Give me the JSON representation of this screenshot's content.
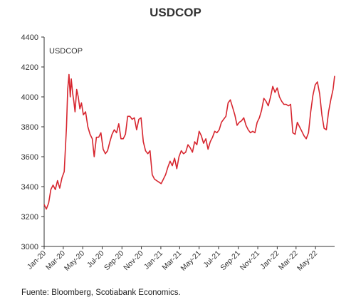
{
  "title": "USDCOP",
  "source": "Fuente: Bloomberg, Scotiabank Economics.",
  "chart_data": {
    "type": "line",
    "title": "USDCOP",
    "xlabel": "",
    "ylabel": "",
    "ylim": [
      3000,
      4400
    ],
    "xlim": [
      "2020-01-01",
      "2022-06-30"
    ],
    "grid": false,
    "legend": "top-left",
    "y_ticks": [
      "3000",
      "3200",
      "3400",
      "3600",
      "3800",
      "4000",
      "4200",
      "4400"
    ],
    "x_tick_labels": [
      {
        "date": "2020-01-01",
        "label": "Jan-20"
      },
      {
        "date": "2020-03-01",
        "label": "Mar-20"
      },
      {
        "date": "2020-05-01",
        "label": "May-20"
      },
      {
        "date": "2020-07-01",
        "label": "Jul-20"
      },
      {
        "date": "2020-09-01",
        "label": "Sep-20"
      },
      {
        "date": "2020-11-01",
        "label": "Nov-20"
      },
      {
        "date": "2021-01-01",
        "label": "Jan-21"
      },
      {
        "date": "2021-03-01",
        "label": "Mar-21"
      },
      {
        "date": "2021-05-01",
        "label": "May-21"
      },
      {
        "date": "2021-07-01",
        "label": "Jul-21"
      },
      {
        "date": "2021-09-01",
        "label": "Sep-21"
      },
      {
        "date": "2021-11-01",
        "label": "Nov-21"
      },
      {
        "date": "2022-01-01",
        "label": "Jan-22"
      },
      {
        "date": "2022-03-01",
        "label": "Mar-22"
      },
      {
        "date": "2022-05-01",
        "label": "May-22"
      }
    ],
    "series": [
      {
        "name": "USDCOP",
        "color": "#d7262f",
        "points": [
          [
            "2020-01-01",
            3280
          ],
          [
            "2020-01-08",
            3250
          ],
          [
            "2020-01-15",
            3290
          ],
          [
            "2020-01-22",
            3380
          ],
          [
            "2020-01-29",
            3410
          ],
          [
            "2020-02-05",
            3380
          ],
          [
            "2020-02-12",
            3440
          ],
          [
            "2020-02-19",
            3390
          ],
          [
            "2020-02-26",
            3460
          ],
          [
            "2020-03-04",
            3500
          ],
          [
            "2020-03-11",
            3800
          ],
          [
            "2020-03-15",
            4050
          ],
          [
            "2020-03-19",
            4150
          ],
          [
            "2020-03-23",
            4000
          ],
          [
            "2020-03-26",
            4120
          ],
          [
            "2020-03-30",
            4030
          ],
          [
            "2020-04-03",
            3970
          ],
          [
            "2020-04-07",
            3900
          ],
          [
            "2020-04-12",
            4050
          ],
          [
            "2020-04-17",
            4000
          ],
          [
            "2020-04-22",
            3920
          ],
          [
            "2020-04-27",
            3960
          ],
          [
            "2020-05-03",
            3880
          ],
          [
            "2020-05-10",
            3900
          ],
          [
            "2020-05-17",
            3800
          ],
          [
            "2020-05-24",
            3750
          ],
          [
            "2020-05-31",
            3720
          ],
          [
            "2020-06-06",
            3600
          ],
          [
            "2020-06-13",
            3730
          ],
          [
            "2020-06-20",
            3730
          ],
          [
            "2020-06-27",
            3760
          ],
          [
            "2020-07-04",
            3650
          ],
          [
            "2020-07-11",
            3620
          ],
          [
            "2020-07-18",
            3640
          ],
          [
            "2020-07-25",
            3700
          ],
          [
            "2020-08-01",
            3750
          ],
          [
            "2020-08-08",
            3780
          ],
          [
            "2020-08-15",
            3760
          ],
          [
            "2020-08-22",
            3820
          ],
          [
            "2020-08-29",
            3720
          ],
          [
            "2020-09-05",
            3720
          ],
          [
            "2020-09-12",
            3750
          ],
          [
            "2020-09-19",
            3870
          ],
          [
            "2020-09-26",
            3870
          ],
          [
            "2020-10-03",
            3850
          ],
          [
            "2020-10-10",
            3860
          ],
          [
            "2020-10-17",
            3780
          ],
          [
            "2020-10-24",
            3850
          ],
          [
            "2020-10-31",
            3860
          ],
          [
            "2020-11-07",
            3700
          ],
          [
            "2020-11-14",
            3640
          ],
          [
            "2020-11-21",
            3620
          ],
          [
            "2020-11-28",
            3640
          ],
          [
            "2020-12-05",
            3480
          ],
          [
            "2020-12-12",
            3450
          ],
          [
            "2020-12-19",
            3440
          ],
          [
            "2020-12-26",
            3430
          ],
          [
            "2021-01-02",
            3420
          ],
          [
            "2021-01-09",
            3450
          ],
          [
            "2021-01-16",
            3480
          ],
          [
            "2021-01-23",
            3530
          ],
          [
            "2021-01-30",
            3570
          ],
          [
            "2021-02-06",
            3540
          ],
          [
            "2021-02-13",
            3590
          ],
          [
            "2021-02-20",
            3520
          ],
          [
            "2021-02-27",
            3600
          ],
          [
            "2021-03-06",
            3640
          ],
          [
            "2021-03-13",
            3620
          ],
          [
            "2021-03-20",
            3630
          ],
          [
            "2021-03-27",
            3680
          ],
          [
            "2021-04-03",
            3660
          ],
          [
            "2021-04-10",
            3630
          ],
          [
            "2021-04-17",
            3700
          ],
          [
            "2021-04-24",
            3680
          ],
          [
            "2021-05-01",
            3770
          ],
          [
            "2021-05-08",
            3740
          ],
          [
            "2021-05-15",
            3690
          ],
          [
            "2021-05-22",
            3720
          ],
          [
            "2021-05-29",
            3650
          ],
          [
            "2021-06-05",
            3700
          ],
          [
            "2021-06-12",
            3730
          ],
          [
            "2021-06-19",
            3770
          ],
          [
            "2021-06-26",
            3760
          ],
          [
            "2021-07-03",
            3780
          ],
          [
            "2021-07-10",
            3830
          ],
          [
            "2021-07-17",
            3850
          ],
          [
            "2021-07-24",
            3870
          ],
          [
            "2021-07-31",
            3960
          ],
          [
            "2021-08-07",
            3980
          ],
          [
            "2021-08-14",
            3930
          ],
          [
            "2021-08-21",
            3880
          ],
          [
            "2021-08-28",
            3810
          ],
          [
            "2021-09-04",
            3830
          ],
          [
            "2021-09-11",
            3840
          ],
          [
            "2021-09-18",
            3860
          ],
          [
            "2021-09-25",
            3810
          ],
          [
            "2021-10-02",
            3780
          ],
          [
            "2021-10-09",
            3760
          ],
          [
            "2021-10-16",
            3770
          ],
          [
            "2021-10-23",
            3760
          ],
          [
            "2021-10-30",
            3830
          ],
          [
            "2021-11-06",
            3860
          ],
          [
            "2021-11-13",
            3910
          ],
          [
            "2021-11-20",
            3990
          ],
          [
            "2021-11-27",
            3970
          ],
          [
            "2021-12-04",
            3940
          ],
          [
            "2021-12-11",
            4000
          ],
          [
            "2021-12-18",
            4070
          ],
          [
            "2021-12-25",
            4030
          ],
          [
            "2022-01-01",
            4060
          ],
          [
            "2022-01-08",
            4000
          ],
          [
            "2022-01-15",
            3970
          ],
          [
            "2022-01-22",
            3950
          ],
          [
            "2022-01-29",
            3950
          ],
          [
            "2022-02-05",
            3940
          ],
          [
            "2022-02-12",
            3950
          ],
          [
            "2022-02-19",
            3760
          ],
          [
            "2022-02-26",
            3750
          ],
          [
            "2022-03-05",
            3830
          ],
          [
            "2022-03-12",
            3800
          ],
          [
            "2022-03-19",
            3770
          ],
          [
            "2022-03-26",
            3740
          ],
          [
            "2022-04-02",
            3720
          ],
          [
            "2022-04-09",
            3760
          ],
          [
            "2022-04-16",
            3900
          ],
          [
            "2022-04-23",
            4010
          ],
          [
            "2022-04-30",
            4080
          ],
          [
            "2022-05-07",
            4100
          ],
          [
            "2022-05-14",
            4020
          ],
          [
            "2022-05-21",
            3880
          ],
          [
            "2022-05-28",
            3790
          ],
          [
            "2022-06-04",
            3780
          ],
          [
            "2022-06-11",
            3900
          ],
          [
            "2022-06-18",
            3980
          ],
          [
            "2022-06-25",
            4050
          ],
          [
            "2022-06-30",
            4140
          ]
        ]
      }
    ]
  }
}
